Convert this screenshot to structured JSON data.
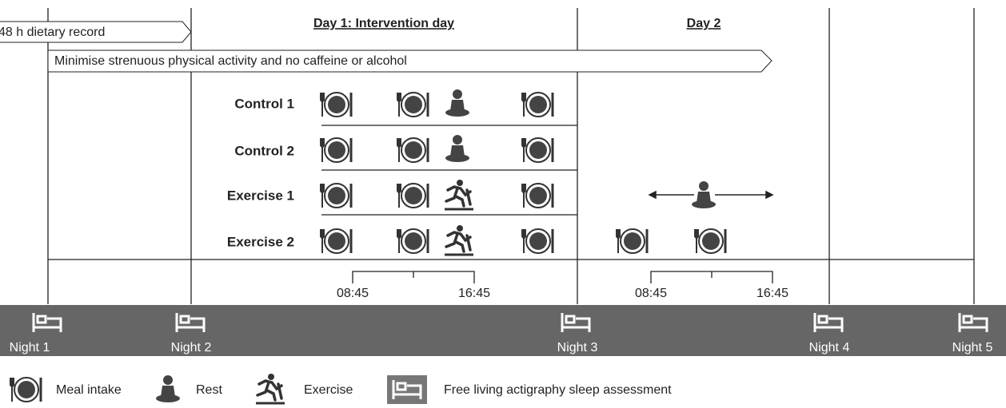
{
  "header": {
    "day1": "Day 1: Intervention day",
    "day2": "Day 2"
  },
  "arrows": [
    "48 h dietary record",
    "Minimise strenuous physical activity and no caffeine or alcohol"
  ],
  "rows": [
    "Control 1",
    "Control 2",
    "Exercise 1",
    "Exercise 2"
  ],
  "timeline": {
    "day1": [
      "08:45",
      "16:45"
    ],
    "day2": [
      "08:45",
      "16:45"
    ]
  },
  "nights": [
    "Night 1",
    "Night 2",
    "Night 3",
    "Night 4",
    "Night 5"
  ],
  "legend": {
    "meal": "Meal intake",
    "rest": "Rest",
    "exercise": "Exercise",
    "sleep": "Free living actigraphy sleep assessment"
  }
}
